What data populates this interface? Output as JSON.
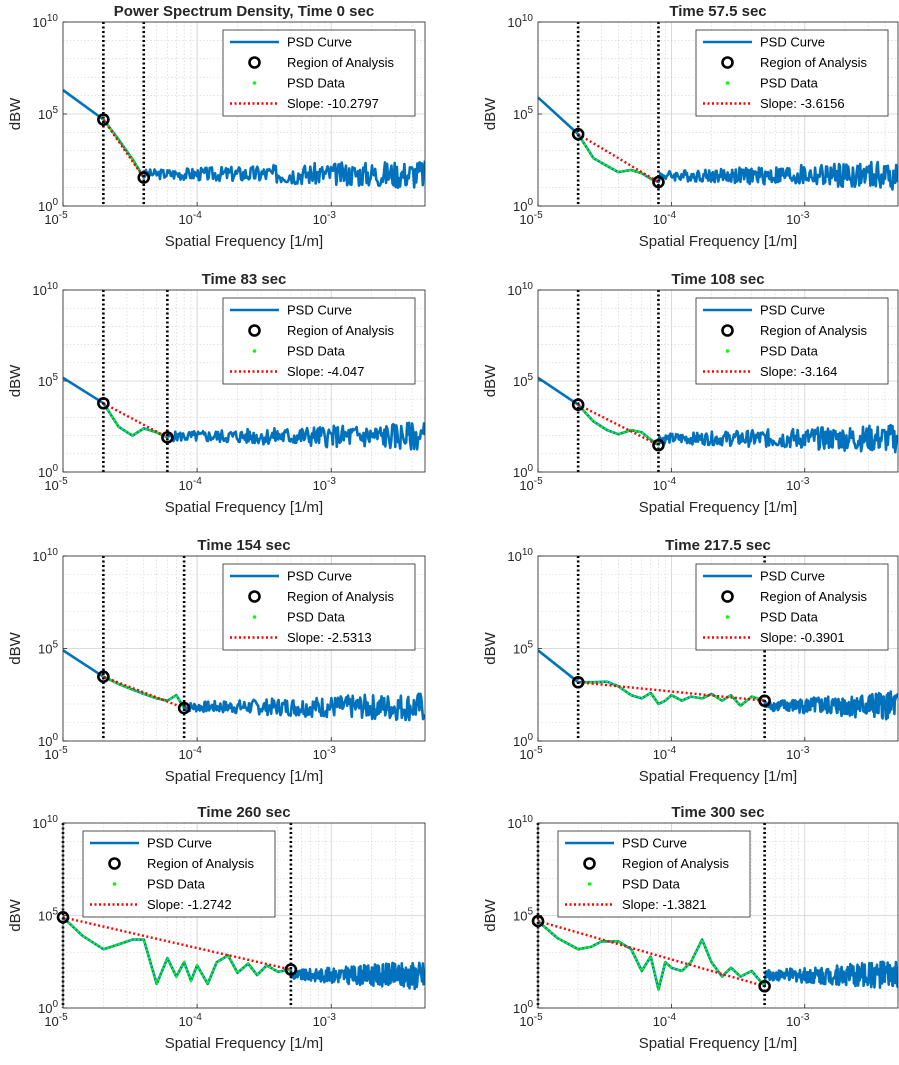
{
  "figure": {
    "background": "#ffffff"
  },
  "colors": {
    "psd_curve": "#0072BD",
    "region_marker": "#000000",
    "psd_data": "#00FF00",
    "slope_line": "#FF0000",
    "cutoff_line": "#000000",
    "grid": "#d0d0d0"
  },
  "chart_data": [
    {
      "type": "line",
      "title": "Power Spectrum Density, Time 0 sec",
      "xlabel": "Spatial Frequency [1/m]",
      "ylabel": "dBW",
      "xscale": "log",
      "yscale": "log",
      "xlim": [
        1e-05,
        0.005
      ],
      "ylim": [
        1,
        10000000000.0
      ],
      "xticks": [
        {
          "v": 1e-05,
          "base": "10",
          "exp": "-5"
        },
        {
          "v": 0.0001,
          "base": "10",
          "exp": "-4"
        },
        {
          "v": 0.001,
          "base": "10",
          "exp": "-3"
        }
      ],
      "yticks": [
        {
          "v": 1,
          "base": "10",
          "exp": "0"
        },
        {
          "v": 100000.0,
          "base": "10",
          "exp": "5"
        },
        {
          "v": 10000000000.0,
          "base": "10",
          "exp": "10"
        }
      ],
      "grid": true,
      "legend_position": "top-right",
      "legend": [
        "PSD Curve",
        "Region of Analysis",
        "PSD Data",
        "Slope: -10.2797"
      ],
      "region": [
        2e-05,
        4e-05
      ],
      "region_y": [
        50000,
        35
      ],
      "slope": -10.2797,
      "psd_start": 2000000,
      "noise_level": 55,
      "psd_data_points": [
        [
          2e-05,
          50000
        ],
        [
          2.6e-05,
          4000
        ],
        [
          3.3e-05,
          350
        ],
        [
          4e-05,
          35
        ]
      ]
    },
    {
      "type": "line",
      "title": "Time 57.5 sec",
      "xlabel": "Spatial Frequency [1/m]",
      "ylabel": "dBW",
      "xscale": "log",
      "yscale": "log",
      "xlim": [
        1e-05,
        0.005
      ],
      "ylim": [
        1,
        10000000000.0
      ],
      "xticks": [
        {
          "v": 1e-05,
          "base": "10",
          "exp": "-5"
        },
        {
          "v": 0.0001,
          "base": "10",
          "exp": "-4"
        },
        {
          "v": 0.001,
          "base": "10",
          "exp": "-3"
        }
      ],
      "yticks": [
        {
          "v": 1,
          "base": "10",
          "exp": "0"
        },
        {
          "v": 100000.0,
          "base": "10",
          "exp": "5"
        },
        {
          "v": 10000000000.0,
          "base": "10",
          "exp": "10"
        }
      ],
      "grid": true,
      "legend_position": "top-right",
      "legend": [
        "PSD Curve",
        "Region of Analysis",
        "PSD Data",
        "Slope: -3.6156"
      ],
      "region": [
        2e-05,
        8e-05
      ],
      "region_y": [
        8000,
        20
      ],
      "slope": -3.6156,
      "psd_start": 800000,
      "noise_level": 45,
      "psd_data_points": [
        [
          2e-05,
          8000
        ],
        [
          2.6e-05,
          400
        ],
        [
          3.3e-05,
          150
        ],
        [
          4e-05,
          70
        ],
        [
          5e-05,
          90
        ],
        [
          6e-05,
          60
        ],
        [
          7e-05,
          30
        ],
        [
          8e-05,
          20
        ]
      ]
    },
    {
      "type": "line",
      "title": "Time 83 sec",
      "xlabel": "Spatial Frequency [1/m]",
      "ylabel": "dBW",
      "xscale": "log",
      "yscale": "log",
      "xlim": [
        1e-05,
        0.005
      ],
      "ylim": [
        1,
        10000000000.0
      ],
      "xticks": [
        {
          "v": 1e-05,
          "base": "10",
          "exp": "-5"
        },
        {
          "v": 0.0001,
          "base": "10",
          "exp": "-4"
        },
        {
          "v": 0.001,
          "base": "10",
          "exp": "-3"
        }
      ],
      "yticks": [
        {
          "v": 1,
          "base": "10",
          "exp": "0"
        },
        {
          "v": 100000.0,
          "base": "10",
          "exp": "5"
        },
        {
          "v": 10000000000.0,
          "base": "10",
          "exp": "10"
        }
      ],
      "grid": true,
      "legend_position": "top-right",
      "legend": [
        "PSD Curve",
        "Region of Analysis",
        "PSD Data",
        "Slope: -4.047"
      ],
      "region": [
        2e-05,
        6e-05
      ],
      "region_y": [
        6000,
        80
      ],
      "slope": -4.047,
      "psd_start": 150000,
      "noise_level": 90,
      "psd_data_points": [
        [
          2e-05,
          6000
        ],
        [
          2.6e-05,
          300
        ],
        [
          3.3e-05,
          100
        ],
        [
          4e-05,
          250
        ],
        [
          5e-05,
          150
        ],
        [
          6e-05,
          80
        ]
      ]
    },
    {
      "type": "line",
      "title": "Time 108 sec",
      "xlabel": "Spatial Frequency [1/m]",
      "ylabel": "dBW",
      "xscale": "log",
      "yscale": "log",
      "xlim": [
        1e-05,
        0.005
      ],
      "ylim": [
        1,
        10000000000.0
      ],
      "xticks": [
        {
          "v": 1e-05,
          "base": "10",
          "exp": "-5"
        },
        {
          "v": 0.0001,
          "base": "10",
          "exp": "-4"
        },
        {
          "v": 0.001,
          "base": "10",
          "exp": "-3"
        }
      ],
      "yticks": [
        {
          "v": 1,
          "base": "10",
          "exp": "0"
        },
        {
          "v": 100000.0,
          "base": "10",
          "exp": "5"
        },
        {
          "v": 10000000000.0,
          "base": "10",
          "exp": "10"
        }
      ],
      "grid": true,
      "legend_position": "top-right",
      "legend": [
        "PSD Curve",
        "Region of Analysis",
        "PSD Data",
        "Slope: -3.164"
      ],
      "region": [
        2e-05,
        8e-05
      ],
      "region_y": [
        5000,
        30
      ],
      "slope": -3.164,
      "psd_start": 150000,
      "noise_level": 70,
      "psd_data_points": [
        [
          2e-05,
          5000
        ],
        [
          2.6e-05,
          600
        ],
        [
          3.3e-05,
          200
        ],
        [
          4e-05,
          120
        ],
        [
          5e-05,
          200
        ],
        [
          6e-05,
          150
        ],
        [
          7e-05,
          60
        ],
        [
          8e-05,
          30
        ]
      ]
    },
    {
      "type": "line",
      "title": "Time 154 sec",
      "xlabel": "Spatial Frequency [1/m]",
      "ylabel": "dBW",
      "xscale": "log",
      "yscale": "log",
      "xlim": [
        1e-05,
        0.005
      ],
      "ylim": [
        1,
        10000000000.0
      ],
      "xticks": [
        {
          "v": 1e-05,
          "base": "10",
          "exp": "-5"
        },
        {
          "v": 0.0001,
          "base": "10",
          "exp": "-4"
        },
        {
          "v": 0.001,
          "base": "10",
          "exp": "-3"
        }
      ],
      "yticks": [
        {
          "v": 1,
          "base": "10",
          "exp": "0"
        },
        {
          "v": 100000.0,
          "base": "10",
          "exp": "5"
        },
        {
          "v": 10000000000.0,
          "base": "10",
          "exp": "10"
        }
      ],
      "grid": true,
      "legend_position": "top-right",
      "legend": [
        "PSD Curve",
        "Region of Analysis",
        "PSD Data",
        "Slope: -2.5313"
      ],
      "region": [
        2e-05,
        8e-05
      ],
      "region_y": [
        3000,
        60
      ],
      "slope": -2.5313,
      "psd_start": 80000,
      "noise_level": 70,
      "psd_data_points": [
        [
          2e-05,
          3000
        ],
        [
          2.6e-05,
          1200
        ],
        [
          3.3e-05,
          600
        ],
        [
          4e-05,
          350
        ],
        [
          5e-05,
          200
        ],
        [
          6e-05,
          150
        ],
        [
          7e-05,
          300
        ],
        [
          8e-05,
          60
        ]
      ]
    },
    {
      "type": "line",
      "title": "Time 217.5 sec",
      "xlabel": "Spatial Frequency [1/m]",
      "ylabel": "dBW",
      "xscale": "log",
      "yscale": "log",
      "xlim": [
        1e-05,
        0.005
      ],
      "ylim": [
        1,
        10000000000.0
      ],
      "xticks": [
        {
          "v": 1e-05,
          "base": "10",
          "exp": "-5"
        },
        {
          "v": 0.0001,
          "base": "10",
          "exp": "-4"
        },
        {
          "v": 0.001,
          "base": "10",
          "exp": "-3"
        }
      ],
      "yticks": [
        {
          "v": 1,
          "base": "10",
          "exp": "0"
        },
        {
          "v": 100000.0,
          "base": "10",
          "exp": "5"
        },
        {
          "v": 10000000000.0,
          "base": "10",
          "exp": "10"
        }
      ],
      "grid": true,
      "legend_position": "top-right",
      "legend": [
        "PSD Curve",
        "Region of Analysis",
        "PSD Data",
        "Slope: -0.3901"
      ],
      "region": [
        2e-05,
        0.0005
      ],
      "region_y": [
        1500,
        150
      ],
      "slope": -0.3901,
      "psd_start": 80000,
      "noise_level": 80,
      "psd_data_points": [
        [
          2e-05,
          1500
        ],
        [
          2.6e-05,
          1500
        ],
        [
          3.3e-05,
          1600
        ],
        [
          4e-05,
          900
        ],
        [
          5e-05,
          300
        ],
        [
          6e-05,
          200
        ],
        [
          7e-05,
          400
        ],
        [
          8e-05,
          100
        ],
        [
          9e-05,
          150
        ],
        [
          0.0001,
          300
        ],
        [
          0.00012,
          150
        ],
        [
          0.00014,
          250
        ],
        [
          0.00017,
          200
        ],
        [
          0.0002,
          350
        ],
        [
          0.00024,
          150
        ],
        [
          0.00028,
          300
        ],
        [
          0.00033,
          80
        ],
        [
          0.0004,
          250
        ],
        [
          0.0005,
          150
        ]
      ]
    },
    {
      "type": "line",
      "title": "Time 260 sec",
      "xlabel": "Spatial Frequency [1/m]",
      "ylabel": "dBW",
      "xscale": "log",
      "yscale": "log",
      "xlim": [
        1e-05,
        0.005
      ],
      "ylim": [
        1,
        10000000000.0
      ],
      "xticks": [
        {
          "v": 1e-05,
          "base": "10",
          "exp": "-5"
        },
        {
          "v": 0.0001,
          "base": "10",
          "exp": "-4"
        },
        {
          "v": 0.001,
          "base": "10",
          "exp": "-3"
        }
      ],
      "yticks": [
        {
          "v": 1,
          "base": "10",
          "exp": "0"
        },
        {
          "v": 100000.0,
          "base": "10",
          "exp": "5"
        },
        {
          "v": 10000000000.0,
          "base": "10",
          "exp": "10"
        }
      ],
      "grid": true,
      "legend_position": "top-left",
      "legend": [
        "PSD Curve",
        "Region of Analysis",
        "PSD Data",
        "Slope: -1.2742"
      ],
      "region": [
        1e-05,
        0.0005
      ],
      "region_y": [
        80000,
        120
      ],
      "slope": -1.2742,
      "psd_start": 80000,
      "noise_level": 60,
      "psd_data_points": [
        [
          1e-05,
          80000
        ],
        [
          1.4e-05,
          8000
        ],
        [
          2e-05,
          1500
        ],
        [
          2.5e-05,
          2500
        ],
        [
          3.3e-05,
          5000
        ],
        [
          4e-05,
          5000
        ],
        [
          5e-05,
          20
        ],
        [
          6e-05,
          500
        ],
        [
          7e-05,
          50
        ],
        [
          8e-05,
          300
        ],
        [
          9e-05,
          30
        ],
        [
          0.0001,
          200
        ],
        [
          0.00012,
          20
        ],
        [
          0.00014,
          300
        ],
        [
          0.00017,
          700
        ],
        [
          0.0002,
          80
        ],
        [
          0.00024,
          250
        ],
        [
          0.00028,
          60
        ],
        [
          0.00033,
          200
        ],
        [
          0.0004,
          90
        ],
        [
          0.0005,
          120
        ]
      ]
    },
    {
      "type": "line",
      "title": "Time 300 sec",
      "xlabel": "Spatial Frequency [1/m]",
      "ylabel": "dBW",
      "xscale": "log",
      "yscale": "log",
      "xlim": [
        1e-05,
        0.005
      ],
      "ylim": [
        1,
        10000000000.0
      ],
      "xticks": [
        {
          "v": 1e-05,
          "base": "10",
          "exp": "-5"
        },
        {
          "v": 0.0001,
          "base": "10",
          "exp": "-4"
        },
        {
          "v": 0.001,
          "base": "10",
          "exp": "-3"
        }
      ],
      "yticks": [
        {
          "v": 1,
          "base": "10",
          "exp": "0"
        },
        {
          "v": 100000.0,
          "base": "10",
          "exp": "5"
        },
        {
          "v": 10000000000.0,
          "base": "10",
          "exp": "10"
        }
      ],
      "grid": true,
      "legend_position": "top-left",
      "legend": [
        "PSD Curve",
        "Region of Analysis",
        "PSD Data",
        "Slope: -1.3821"
      ],
      "region": [
        1e-05,
        0.0005
      ],
      "region_y": [
        50000,
        15
      ],
      "slope": -1.3821,
      "psd_start": 50000,
      "noise_level": 60,
      "psd_data_points": [
        [
          1e-05,
          50000
        ],
        [
          1.4e-05,
          6000
        ],
        [
          2e-05,
          1500
        ],
        [
          2.5e-05,
          2000
        ],
        [
          3e-05,
          4000
        ],
        [
          4e-05,
          4000
        ],
        [
          5e-05,
          1500
        ],
        [
          6e-05,
          100
        ],
        [
          7e-05,
          600
        ],
        [
          8e-05,
          10
        ],
        [
          9e-05,
          300
        ],
        [
          0.0001,
          150
        ],
        [
          0.00012,
          100
        ],
        [
          0.00014,
          300
        ],
        [
          0.00017,
          5000
        ],
        [
          0.0002,
          300
        ],
        [
          0.00024,
          50
        ],
        [
          0.00028,
          150
        ],
        [
          0.00033,
          50
        ],
        [
          0.0004,
          100
        ],
        [
          0.0005,
          15
        ]
      ]
    }
  ]
}
